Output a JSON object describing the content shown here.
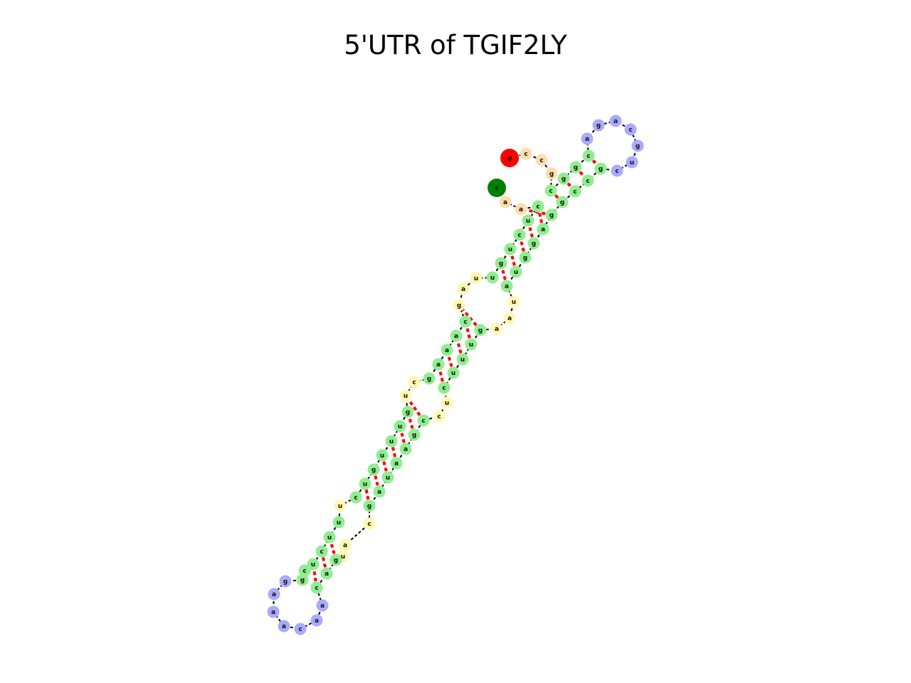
{
  "title": "5'UTR of TGIF2LY",
  "sequence": "gccggcaggcagcugcccgaucagacgagcggauugcccucaggccuucguuaagcggacaaaagccugcuaggugucccgagcccagacuaaagggccgcuacac",
  "colors": {
    "five_prime_end": "#ff0000",
    "three_prime_end": "#008000",
    "stem": "#90ee90",
    "hairpin_loop": "#aaaaff",
    "interior_loop": "#fff8b0",
    "unpaired_end": "#ffdead",
    "pair_bond": "#ff0000",
    "backbone": "#000000"
  },
  "legend_note": ""
}
